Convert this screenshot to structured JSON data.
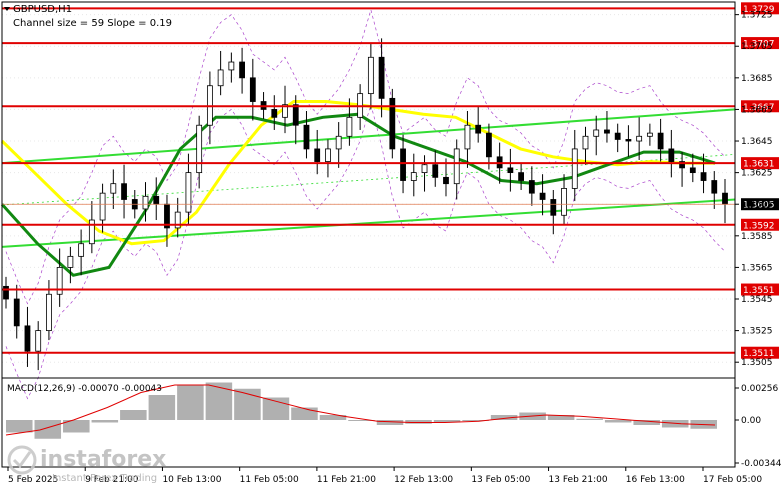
{
  "header": {
    "symbol": "GBPUSD,H1",
    "channel_text": "Channel size = 59 Slope = 0.19"
  },
  "macd": {
    "label": "MACD(12,26,9) -0.00070 -0.00043"
  },
  "watermark": {
    "brand": "instaforex",
    "tagline": "Instant Forex Trading"
  },
  "colors": {
    "level_line": "#e00000",
    "level_box": "#e00000",
    "channel_line": "#33dd33",
    "ma_slow": "#ffff00",
    "ma_fast": "#118811",
    "bollinger": "#aa44cc",
    "candle": "#000000",
    "macd_hist": "#b0b0b0",
    "macd_signal": "#e00000",
    "current_price_box": "#000000"
  },
  "chart_data": {
    "type": "candlestick",
    "price_axis_ticks": [
      "1.3725",
      "1.3705",
      "1.3685",
      "1.3665",
      "1.3645",
      "1.3625",
      "1.3605",
      "1.3585",
      "1.3565",
      "1.3545",
      "1.3525",
      "1.3505"
    ],
    "time_axis_labels": [
      "5 Feb 2025",
      "9 Feb 21:00",
      "10 Feb 13:00",
      "11 Feb 05:00",
      "11 Feb 21:00",
      "12 Feb 13:00",
      "13 Feb 05:00",
      "13 Feb 21:00",
      "16 Feb 13:00",
      "17 Feb 05:00"
    ],
    "levels": [
      "1.3729",
      "1.3707",
      "1.3667",
      "1.3631",
      "1.3592",
      "1.3551",
      "1.3511"
    ],
    "current_price": "1.3605",
    "macd_axis_ticks": [
      "0.00256",
      "0.00",
      "-0.00344"
    ],
    "price_min": 1.3495,
    "price_max": 1.3733,
    "close_path": [
      1.3545,
      1.3528,
      1.3512,
      1.3525,
      1.3548,
      1.3565,
      1.3572,
      1.358,
      1.3595,
      1.3612,
      1.3618,
      1.3608,
      1.3602,
      1.361,
      1.3605,
      1.359,
      1.36,
      1.3625,
      1.3655,
      1.368,
      1.369,
      1.3695,
      1.3685,
      1.367,
      1.3665,
      1.366,
      1.3668,
      1.3655,
      1.364,
      1.3632,
      1.364,
      1.3648,
      1.366,
      1.3675,
      1.3698,
      1.3672,
      1.364,
      1.362,
      1.3625,
      1.363,
      1.3622,
      1.3618,
      1.364,
      1.3655,
      1.365,
      1.3635,
      1.3628,
      1.3625,
      1.362,
      1.3612,
      1.3608,
      1.3598,
      1.3615,
      1.364,
      1.3648,
      1.3652,
      1.365,
      1.3646,
      1.3645,
      1.3648,
      1.365,
      1.364,
      1.3632,
      1.3628,
      1.3625,
      1.362,
      1.3612,
      1.3605
    ],
    "ma_slow_path": [
      1.3645,
      1.3625,
      1.3605,
      1.3588,
      1.358,
      1.3582,
      1.36,
      1.363,
      1.3655,
      1.367,
      1.367,
      1.3668,
      1.3665,
      1.3662,
      1.366,
      1.365,
      1.364,
      1.3635,
      1.3632,
      1.363,
      1.3632,
      1.3631,
      1.3631
    ],
    "ma_fast_path": [
      1.3605,
      1.358,
      1.356,
      1.3565,
      1.36,
      1.364,
      1.366,
      1.366,
      1.3655,
      1.366,
      1.3662,
      1.3648,
      1.364,
      1.3632,
      1.362,
      1.3618,
      1.3622,
      1.363,
      1.3638,
      1.3638,
      1.3631
    ],
    "channel_lower": [
      1.3578,
      1.3608
    ],
    "channel_upper": [
      1.3631,
      1.3665
    ],
    "macd_hist": [
      -0.001,
      -0.0015,
      -0.001,
      -0.0002,
      0.0008,
      0.002,
      0.0028,
      0.003,
      0.0025,
      0.0018,
      0.001,
      0.0004,
      0.0,
      -0.0004,
      -0.0003,
      -0.0002,
      0.0,
      0.0004,
      0.0006,
      0.0004,
      0.0001,
      -0.0002,
      -0.0004,
      -0.0006,
      -0.0007
    ],
    "macd_signal": [
      -0.0012,
      -0.0008,
      0.0,
      0.001,
      0.0022,
      0.0028,
      0.0028,
      0.0022,
      0.0015,
      0.0008,
      0.0003,
      -0.0001,
      -0.0002,
      -0.0002,
      -0.0001,
      0.0002,
      0.0004,
      0.0003,
      0.0001,
      -0.0001,
      -0.0003,
      -0.0004
    ]
  }
}
